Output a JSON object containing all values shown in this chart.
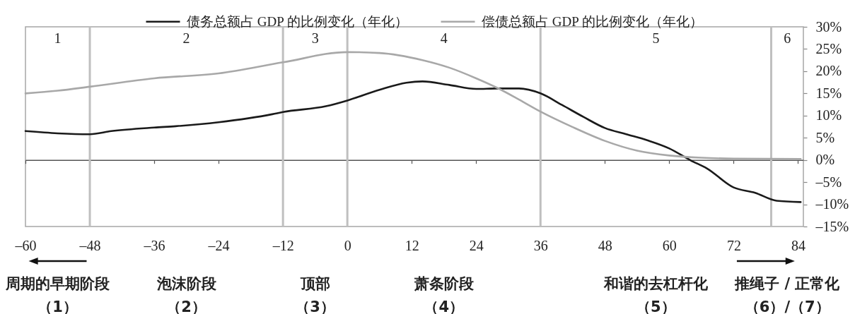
{
  "chart_data": {
    "type": "line",
    "series": [
      {
        "name": "债务总额占 GDP 的比例变化（年化）",
        "color": "#1a1a1a",
        "x": [
          -60,
          -54,
          -48,
          -44,
          -36,
          -32,
          -24,
          -14,
          -12,
          -4,
          0,
          6,
          11,
          14,
          19,
          24,
          28,
          32,
          36,
          40,
          44,
          48,
          52,
          56,
          60,
          64,
          67,
          72,
          76,
          80,
          84.5
        ],
        "values": [
          6.5,
          6.0,
          5.8,
          6.5,
          7.3,
          7.6,
          8.5,
          10.3,
          10.8,
          12.1,
          13.4,
          15.8,
          17.4,
          17.7,
          16.9,
          16.0,
          16.1,
          16.1,
          15.0,
          12.4,
          9.7,
          7.2,
          5.8,
          4.4,
          2.6,
          -0.1,
          -1.9,
          -6.2,
          -7.4,
          -9.2,
          -9.5
        ]
      },
      {
        "name": "偿债总额占 GDP 的比例变化（年化）",
        "color": "#a8a8a8",
        "x": [
          -60,
          -54,
          -48,
          -36,
          -24,
          -12,
          0,
          6,
          14,
          19,
          24,
          28,
          32,
          36,
          42,
          48,
          54,
          60,
          66,
          72,
          84.5
        ],
        "values": [
          15.0,
          15.6,
          16.5,
          18.4,
          19.5,
          22.0,
          24.3,
          24.1,
          22.5,
          20.8,
          18.4,
          16.2,
          13.6,
          10.9,
          7.4,
          4.3,
          2.1,
          1.0,
          0.5,
          0.3,
          0.2
        ]
      }
    ],
    "xlim": [
      -60,
      85
    ],
    "xticks": [
      {
        "value": -60,
        "label": "–60"
      },
      {
        "value": -48,
        "label": "–48"
      },
      {
        "value": -36,
        "label": "–36"
      },
      {
        "value": -24,
        "label": "–24"
      },
      {
        "value": -12,
        "label": "–12"
      },
      0,
      12,
      24,
      36,
      48,
      60,
      72,
      84
    ],
    "ylim": [
      -15,
      30
    ],
    "yticks": [
      {
        "value": -15,
        "label": "–15%"
      },
      {
        "value": -10,
        "label": "–10%"
      },
      {
        "value": -5,
        "label": "–5%"
      },
      {
        "value": 0,
        "label": "0%"
      },
      {
        "value": 5,
        "label": "5%"
      },
      {
        "value": 10,
        "label": "10%"
      },
      {
        "value": 15,
        "label": "15%"
      },
      {
        "value": 20,
        "label": "20%"
      },
      {
        "value": 25,
        "label": "25%"
      },
      {
        "value": 30,
        "label": "30%"
      }
    ],
    "legend": "top",
    "ref_lines": [
      {
        "axis": "x",
        "value": -48,
        "color": "#bfbfbf"
      },
      {
        "axis": "x",
        "value": -12,
        "color": "#bfbfbf"
      },
      {
        "axis": "x",
        "value": 0,
        "color": "#bfbfbf"
      },
      {
        "axis": "x",
        "value": 36,
        "color": "#bfbfbf"
      },
      {
        "axis": "x",
        "value": 79,
        "color": "#bfbfbf"
      }
    ],
    "annotations": [
      "1",
      "2",
      "3",
      "4",
      "5",
      "6",
      "周期的早期阶段",
      "泡沫阶段",
      "顶部",
      "萧条阶段",
      "和谐的去杠杆化",
      "推绳子 / 正常化",
      "（1）",
      "（2）",
      "（3）",
      "（4）",
      "（5）",
      "（6）/（7）"
    ]
  }
}
